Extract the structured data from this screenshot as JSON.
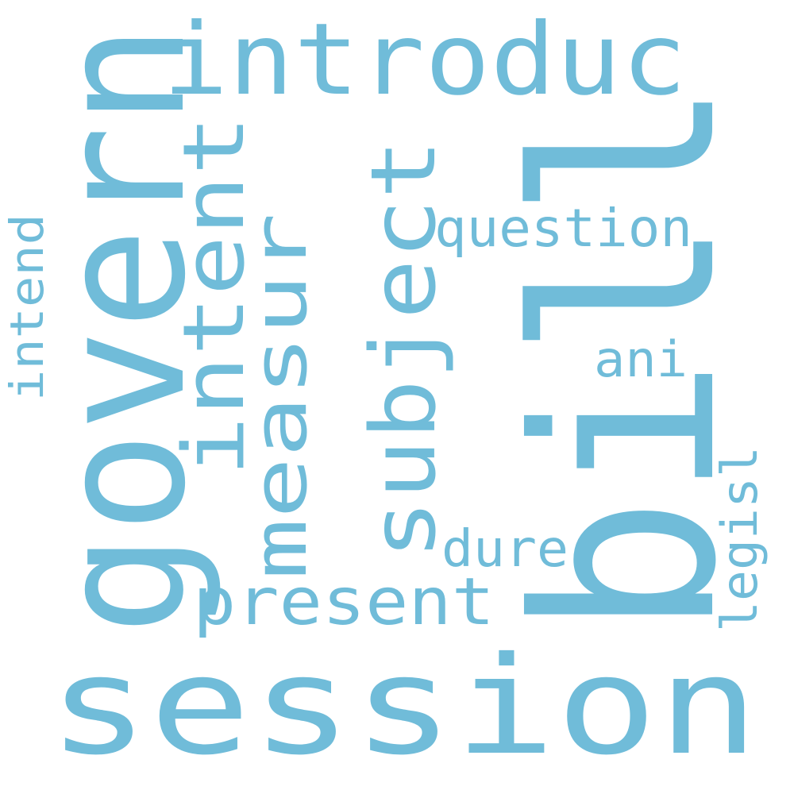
{
  "background_color": "#ffffff",
  "word_color": "#70bcd9",
  "words": {
    "session": "session",
    "bill": "bill",
    "govern": "govern",
    "introduc": "introduc",
    "subject": "subject",
    "intent": "intent",
    "measur": "measur",
    "present": "present",
    "question": "question",
    "intend": "intend",
    "legisl": "legisl",
    "dure": "dure",
    "ani": "ani"
  }
}
